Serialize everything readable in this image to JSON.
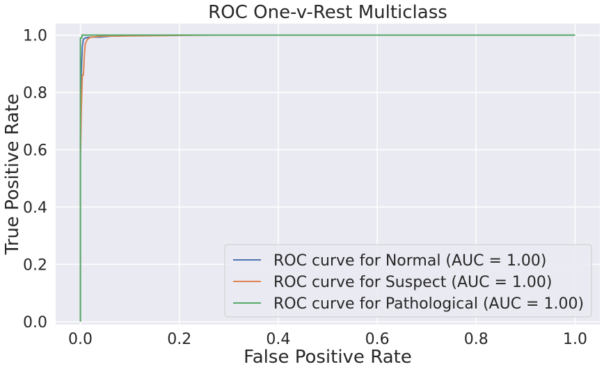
{
  "chart_data": {
    "type": "line",
    "title": "ROC One-v-Rest Multiclass",
    "xlabel": "False Positive Rate",
    "ylabel": "True Positive Rate",
    "xlim": [
      -0.05,
      1.05
    ],
    "ylim": [
      -0.01,
      1.04
    ],
    "xticks": [
      "0.0",
      "0.2",
      "0.4",
      "0.6",
      "0.8",
      "1.0"
    ],
    "yticks": [
      "0.0",
      "0.2",
      "0.4",
      "0.6",
      "0.8",
      "1.0"
    ],
    "grid": true,
    "legend_position": "lower-right",
    "series": [
      {
        "name": "ROC curve for Normal (AUC = 1.00)",
        "color": "#4c72b0",
        "x": [
          0.0,
          0.0,
          0.002,
          0.004,
          0.006,
          0.01,
          0.02,
          0.04,
          0.06,
          0.1,
          0.12,
          1.0
        ],
        "y": [
          0.0,
          0.6,
          0.88,
          0.96,
          0.985,
          0.99,
          0.993,
          0.993,
          0.996,
          0.998,
          1.0,
          1.0
        ]
      },
      {
        "name": "ROC curve for Suspect (AUC = 1.00)",
        "color": "#dd8452",
        "x": [
          0.0,
          0.0,
          0.002,
          0.004,
          0.006,
          0.008,
          0.01,
          0.014,
          0.02,
          0.04,
          0.27,
          1.0
        ],
        "y": [
          0.0,
          0.57,
          0.75,
          0.86,
          0.86,
          0.93,
          0.97,
          0.985,
          0.992,
          0.996,
          1.0,
          1.0
        ]
      },
      {
        "name": "ROC curve for Pathological (AUC = 1.00)",
        "color": "#55a868",
        "x": [
          0.0,
          0.0,
          0.0,
          0.003,
          0.003,
          1.0
        ],
        "y": [
          0.0,
          0.6,
          0.99,
          0.99,
          1.0,
          1.0
        ]
      }
    ]
  }
}
